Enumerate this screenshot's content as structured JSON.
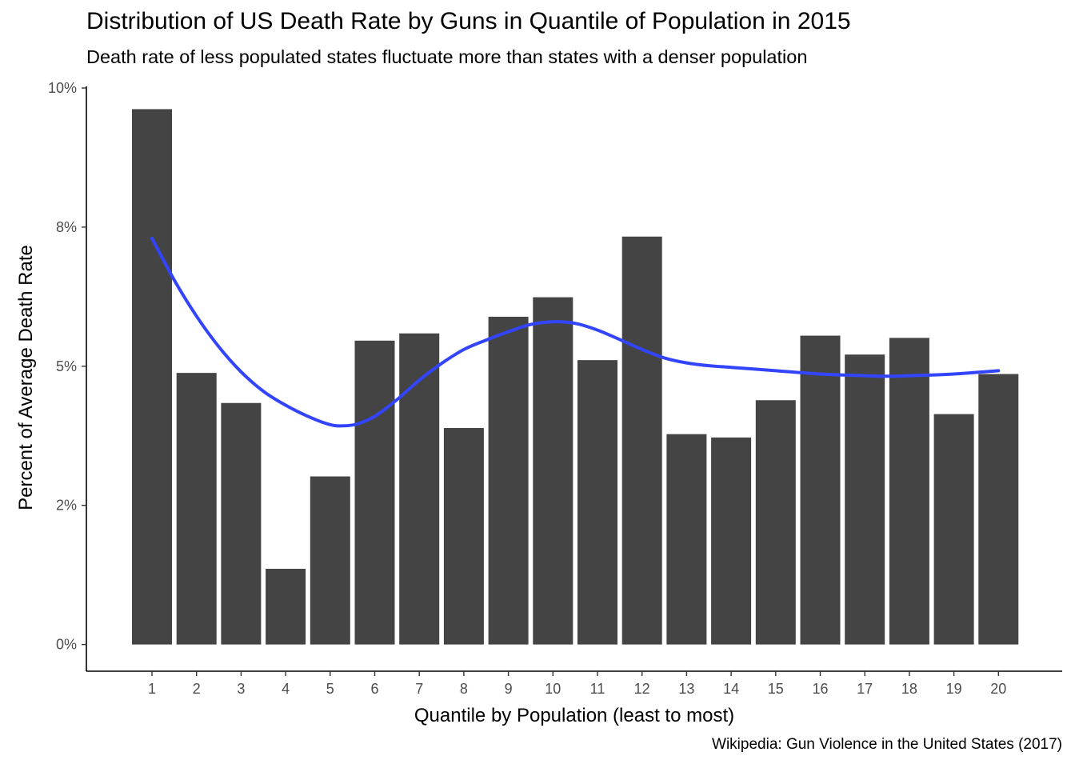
{
  "chart_data": {
    "type": "bar",
    "title": "Distribution of US Death Rate by Guns in Quantile of Population in 2015",
    "subtitle": "Death rate of less populated states fluctuate more than states with a denser population",
    "caption": "Wikipedia: Gun Violence in the United States (2017)",
    "xlabel": "Quantile by Population (least to most)",
    "ylabel": "Percent of Average Death Rate",
    "categories": [
      "1",
      "2",
      "3",
      "4",
      "5",
      "6",
      "7",
      "8",
      "9",
      "10",
      "11",
      "12",
      "13",
      "14",
      "15",
      "16",
      "17",
      "18",
      "19",
      "20"
    ],
    "values": [
      9.62,
      4.88,
      4.34,
      1.36,
      3.02,
      5.46,
      5.59,
      3.89,
      5.89,
      6.24,
      5.11,
      7.33,
      3.78,
      3.72,
      4.39,
      5.55,
      5.21,
      5.51,
      4.14,
      4.86
    ],
    "y_ticks": [
      0,
      2.5,
      5,
      7.5,
      10
    ],
    "y_tick_labels": [
      "0%",
      "2%",
      "5%",
      "8%",
      "10%"
    ],
    "ylim": [
      -0.48,
      10.0
    ],
    "bar_color": "#444444",
    "smooth_line": {
      "color": "#3344ff",
      "x": [
        1,
        1.5,
        2,
        2.5,
        3,
        3.5,
        4,
        4.5,
        5,
        5.3,
        5.6,
        6,
        6.5,
        7,
        7.5,
        8,
        8.5,
        9,
        9.5,
        10,
        10.5,
        11,
        11.5,
        12,
        12.5,
        13,
        13.5,
        14,
        14.5,
        15,
        16,
        17,
        17.5,
        18,
        19,
        20
      ],
      "y": [
        7.3,
        6.55,
        5.9,
        5.35,
        4.9,
        4.55,
        4.3,
        4.1,
        3.95,
        3.93,
        3.96,
        4.1,
        4.4,
        4.75,
        5.05,
        5.3,
        5.47,
        5.62,
        5.75,
        5.8,
        5.77,
        5.65,
        5.48,
        5.3,
        5.15,
        5.06,
        5.01,
        4.98,
        4.95,
        4.92,
        4.86,
        4.83,
        4.82,
        4.83,
        4.86,
        4.92
      ]
    }
  }
}
